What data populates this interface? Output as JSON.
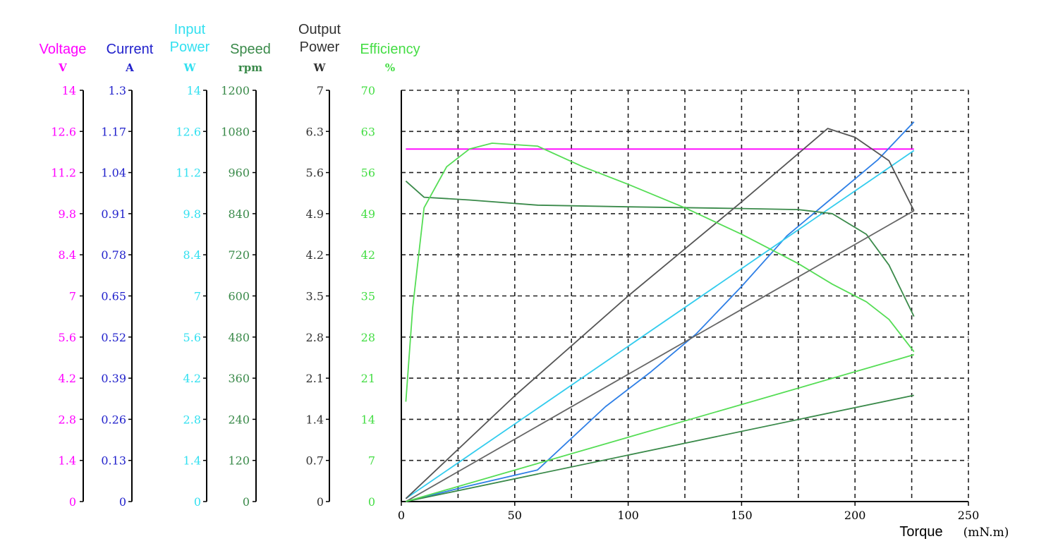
{
  "chart_data": {
    "type": "line",
    "x_axis": {
      "label": "Torque",
      "unit": "(mN.m)",
      "range": [
        0,
        250
      ],
      "ticks": [
        "0",
        "50",
        "100",
        "150",
        "200",
        "250"
      ],
      "grid": "dashed"
    },
    "y_axes": [
      {
        "id": "voltage",
        "title": "Voltage",
        "title_lines": [
          "Voltage"
        ],
        "unit": "V",
        "color": "#ff00ff",
        "range": [
          0,
          14
        ],
        "ticks": [
          "0",
          "1.4",
          "2.8",
          "4.2",
          "5.6",
          "7",
          "8.4",
          "9.8",
          "11.2",
          "12.6",
          "14"
        ]
      },
      {
        "id": "current",
        "title": "Current",
        "title_lines": [
          "Current"
        ],
        "unit": "A",
        "color": "#2222cc",
        "range": [
          0,
          1.3
        ],
        "ticks": [
          "0",
          "0.13",
          "0.26",
          "0.39",
          "0.52",
          "0.65",
          "0.78",
          "0.91",
          "1.04",
          "1.17",
          "1.3"
        ]
      },
      {
        "id": "input_power",
        "title": "Input Power",
        "title_lines": [
          "Input",
          "Power"
        ],
        "unit": "W",
        "color": "#33e0f0",
        "range": [
          0,
          14
        ],
        "ticks": [
          "0",
          "1.4",
          "2.8",
          "4.2",
          "5.6",
          "7",
          "8.4",
          "9.8",
          "11.2",
          "12.6",
          "14"
        ]
      },
      {
        "id": "speed",
        "title": "Speed",
        "title_lines": [
          "Speed"
        ],
        "unit": "rpm",
        "color": "#3a8a4a",
        "range": [
          0,
          1200
        ],
        "ticks": [
          "0",
          "120",
          "240",
          "360",
          "480",
          "600",
          "720",
          "840",
          "960",
          "1080",
          "1200"
        ]
      },
      {
        "id": "output_power",
        "title": "Output Power",
        "title_lines": [
          "Output",
          "Power"
        ],
        "unit": "W",
        "color": "#333333",
        "range": [
          0,
          7
        ],
        "ticks": [
          "0",
          "0.7",
          "1.4",
          "2.1",
          "2.8",
          "3.5",
          "4.2",
          "4.9",
          "5.6",
          "6.3",
          "7"
        ]
      },
      {
        "id": "efficiency",
        "title": "Efficiency",
        "title_lines": [
          "Efficiency"
        ],
        "unit": "%",
        "color": "#44dd44",
        "range": [
          0,
          70
        ],
        "ticks": [
          "0",
          "7",
          "14",
          "21",
          "28",
          "35",
          "42",
          "49",
          "56",
          "63",
          "70"
        ]
      }
    ],
    "series": [
      {
        "id": "voltage",
        "axis": "voltage",
        "color": "#ff00ff",
        "x": [
          2,
          40,
          226
        ],
        "y": [
          12,
          12,
          12
        ]
      },
      {
        "id": "current",
        "axis": "current",
        "color": "#2e7fe6",
        "x": [
          2,
          30,
          60,
          90,
          110,
          130,
          150,
          170,
          190,
          210,
          226
        ],
        "y": [
          0.0,
          0.05,
          0.1,
          0.3,
          0.41,
          0.53,
          0.68,
          0.84,
          0.96,
          1.08,
          1.2
        ]
      },
      {
        "id": "input_power",
        "axis": "input_power",
        "color": "#33ccee",
        "x": [
          2,
          226
        ],
        "y": [
          0.1,
          11.95
        ]
      },
      {
        "id": "speed",
        "axis": "speed",
        "color": "#3a8a4a",
        "x": [
          2,
          10,
          30,
          60,
          100,
          150,
          175,
          190,
          205,
          215,
          226
        ],
        "y": [
          935,
          888,
          880,
          865,
          860,
          855,
          852,
          840,
          780,
          690,
          540
        ]
      },
      {
        "id": "output_power",
        "axis": "output_power",
        "color": "#555555",
        "x": [
          2,
          50,
          100,
          150,
          188,
          200,
          215,
          226
        ],
        "y": [
          0.05,
          1.8,
          3.5,
          5.1,
          6.35,
          6.2,
          5.8,
          4.95
        ]
      },
      {
        "id": "efficiency",
        "axis": "efficiency",
        "color": "#55dd55",
        "x": [
          2,
          5,
          10,
          20,
          30,
          40,
          60,
          80,
          100,
          125,
          150,
          175,
          190,
          205,
          215,
          226
        ],
        "y": [
          17,
          33,
          50,
          57,
          60,
          61,
          60.5,
          57,
          54,
          50,
          45.5,
          40.5,
          37,
          34,
          31,
          25.5
        ]
      },
      {
        "id": "output_power_line",
        "axis": "output_power",
        "color": "#666666",
        "x": [
          2,
          226
        ],
        "y": [
          0,
          4.95
        ]
      },
      {
        "id": "speed_line",
        "axis": "speed",
        "color": "#3a8a4a",
        "x": [
          2,
          226
        ],
        "y": [
          0,
          310
        ]
      },
      {
        "id": "efficiency_line",
        "axis": "efficiency",
        "color": "#55dd55",
        "x": [
          2,
          226
        ],
        "y": [
          0,
          25
        ]
      }
    ]
  }
}
